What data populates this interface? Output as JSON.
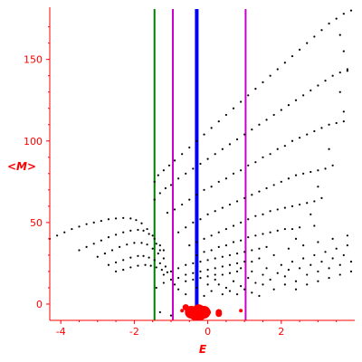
{
  "chart_data": {
    "type": "scatter",
    "xlabel": "E",
    "ylabel": "<M>",
    "xlim": [
      -4.3,
      4.0
    ],
    "ylim": [
      -10,
      182
    ],
    "x_ticks": [
      {
        "value": -4,
        "label": "-4"
      },
      {
        "value": -2,
        "label": "-2"
      },
      {
        "value": 0,
        "label": "0"
      },
      {
        "value": 2,
        "label": "2"
      }
    ],
    "y_ticks": [
      {
        "value": 0,
        "label": "0"
      },
      {
        "value": 50,
        "label": "50"
      },
      {
        "value": 100,
        "label": "100"
      },
      {
        "value": 150,
        "label": "150"
      }
    ],
    "grid": false,
    "colors": {
      "axis": "#ff0000",
      "points": "#000000",
      "highlight": "#ff0000"
    },
    "vertical_lines": [
      {
        "x": -1.45,
        "color": "#008000",
        "width": 2
      },
      {
        "x": -0.95,
        "color": "#cc00cc",
        "width": 2
      },
      {
        "x": -0.3,
        "color": "#0000ff",
        "width": 4
      },
      {
        "x": 1.03,
        "color": "#cc00cc",
        "width": 2
      }
    ],
    "series": [
      {
        "points": [
          [
            -4.3,
            40
          ],
          [
            -4.1,
            42
          ],
          [
            -3.9,
            44
          ],
          [
            -3.7,
            46
          ],
          [
            -3.5,
            47.5
          ],
          [
            -3.3,
            49
          ],
          [
            -3.1,
            50
          ],
          [
            -2.9,
            51
          ],
          [
            -2.7,
            52
          ],
          [
            -2.5,
            52.5
          ],
          [
            -2.3,
            52.8
          ],
          [
            -2.1,
            52.5
          ],
          [
            -1.95,
            51.5
          ],
          [
            -1.8,
            49.5
          ],
          [
            -1.65,
            46
          ],
          [
            -1.5,
            42
          ],
          [
            -1.4,
            37
          ],
          [
            -1.3,
            33
          ],
          [
            -3.5,
            33
          ],
          [
            -3.3,
            35
          ],
          [
            -3.1,
            37
          ],
          [
            -2.9,
            39
          ],
          [
            -2.7,
            41
          ],
          [
            -2.5,
            42.5
          ],
          [
            -2.3,
            44
          ],
          [
            -2.1,
            45
          ],
          [
            -1.9,
            45.5
          ],
          [
            -1.75,
            45
          ],
          [
            -1.6,
            43
          ],
          [
            -1.45,
            40
          ],
          [
            -1.3,
            36
          ],
          [
            -1.2,
            33
          ],
          [
            -3.0,
            29
          ],
          [
            -2.8,
            31
          ],
          [
            -2.6,
            33
          ],
          [
            -2.4,
            35
          ],
          [
            -2.2,
            36.5
          ],
          [
            -2.0,
            37.5
          ],
          [
            -1.8,
            37.5
          ],
          [
            -1.65,
            36.5
          ],
          [
            -1.5,
            34
          ],
          [
            -1.35,
            31
          ],
          [
            -1.2,
            28
          ],
          [
            -2.7,
            24
          ],
          [
            -2.5,
            25.5
          ],
          [
            -2.3,
            27
          ],
          [
            -2.1,
            28.5
          ],
          [
            -1.9,
            29.5
          ],
          [
            -1.75,
            29.5
          ],
          [
            -1.6,
            28.5
          ],
          [
            -1.45,
            27
          ],
          [
            -1.3,
            25
          ],
          [
            -1.15,
            23
          ],
          [
            -2.5,
            20
          ],
          [
            -2.3,
            21
          ],
          [
            -2.1,
            22.5
          ],
          [
            -1.9,
            23.5
          ],
          [
            -1.7,
            24
          ],
          [
            -1.55,
            23.5
          ],
          [
            -1.4,
            22.5
          ],
          [
            -1.25,
            21
          ],
          [
            -1.1,
            19.5
          ],
          [
            -1.45,
            75
          ],
          [
            -1.35,
            79
          ],
          [
            -1.2,
            82
          ],
          [
            -1.05,
            85
          ],
          [
            -0.9,
            88
          ],
          [
            -0.7,
            92
          ],
          [
            -0.5,
            96
          ],
          [
            -0.3,
            100
          ],
          [
            -0.1,
            104
          ],
          [
            0.1,
            108
          ],
          [
            0.3,
            112
          ],
          [
            0.5,
            116
          ],
          [
            0.7,
            120
          ],
          [
            0.9,
            124
          ],
          [
            1.1,
            128
          ],
          [
            1.3,
            132
          ],
          [
            1.5,
            136
          ],
          [
            1.7,
            140
          ],
          [
            1.9,
            144
          ],
          [
            2.1,
            148
          ],
          [
            2.3,
            152
          ],
          [
            2.5,
            156
          ],
          [
            2.7,
            160
          ],
          [
            2.9,
            164
          ],
          [
            3.1,
            168
          ],
          [
            3.3,
            172
          ],
          [
            3.5,
            175
          ],
          [
            3.7,
            178
          ],
          [
            3.9,
            180
          ],
          [
            3.6,
            165
          ],
          [
            3.7,
            155
          ],
          [
            3.8,
            143
          ],
          [
            -1.45,
            64
          ],
          [
            -1.3,
            68
          ],
          [
            -1.15,
            71
          ],
          [
            -1.0,
            73
          ],
          [
            -0.8,
            77
          ],
          [
            -0.6,
            80
          ],
          [
            -0.4,
            83
          ],
          [
            -0.2,
            86
          ],
          [
            0.0,
            89
          ],
          [
            0.2,
            92
          ],
          [
            0.4,
            95
          ],
          [
            0.6,
            98
          ],
          [
            0.8,
            101
          ],
          [
            1.0,
            104
          ],
          [
            1.2,
            107
          ],
          [
            1.4,
            110
          ],
          [
            1.6,
            113
          ],
          [
            1.8,
            116
          ],
          [
            2.0,
            119
          ],
          [
            2.2,
            122
          ],
          [
            2.4,
            125
          ],
          [
            2.6,
            128
          ],
          [
            2.8,
            131
          ],
          [
            3.0,
            134
          ],
          [
            3.2,
            137
          ],
          [
            3.4,
            140
          ],
          [
            3.6,
            142
          ],
          [
            3.8,
            144
          ],
          [
            3.6,
            130
          ],
          [
            3.7,
            118
          ],
          [
            -1.1,
            56
          ],
          [
            -0.9,
            58
          ],
          [
            -0.7,
            61
          ],
          [
            -0.5,
            64
          ],
          [
            -0.3,
            67
          ],
          [
            -0.1,
            70
          ],
          [
            0.1,
            72
          ],
          [
            0.3,
            75
          ],
          [
            0.5,
            77
          ],
          [
            0.7,
            80
          ],
          [
            0.9,
            82
          ],
          [
            1.1,
            85
          ],
          [
            1.3,
            87
          ],
          [
            1.5,
            90
          ],
          [
            1.7,
            92
          ],
          [
            1.9,
            95
          ],
          [
            2.1,
            97
          ],
          [
            2.3,
            100
          ],
          [
            2.5,
            102
          ],
          [
            2.7,
            104
          ],
          [
            2.9,
            106
          ],
          [
            3.1,
            108
          ],
          [
            3.3,
            110
          ],
          [
            3.5,
            111
          ],
          [
            3.7,
            112
          ],
          [
            3.3,
            95
          ],
          [
            3.4,
            85
          ],
          [
            -0.8,
            44
          ],
          [
            -0.6,
            47
          ],
          [
            -0.4,
            50
          ],
          [
            -0.2,
            52
          ],
          [
            0.0,
            55
          ],
          [
            0.2,
            57
          ],
          [
            0.4,
            59
          ],
          [
            0.6,
            61
          ],
          [
            0.8,
            63
          ],
          [
            1.0,
            65
          ],
          [
            1.2,
            67
          ],
          [
            1.4,
            69
          ],
          [
            1.6,
            71
          ],
          [
            1.8,
            73
          ],
          [
            2.0,
            75
          ],
          [
            2.2,
            77
          ],
          [
            2.4,
            79
          ],
          [
            2.6,
            80
          ],
          [
            2.8,
            81
          ],
          [
            3.0,
            82
          ],
          [
            3.2,
            83
          ],
          [
            3.0,
            72
          ],
          [
            3.1,
            65
          ],
          [
            -0.5,
            36
          ],
          [
            -0.3,
            38
          ],
          [
            -0.1,
            40
          ],
          [
            0.1,
            42
          ],
          [
            0.3,
            44
          ],
          [
            0.5,
            46
          ],
          [
            0.7,
            48
          ],
          [
            0.9,
            50
          ],
          [
            1.1,
            52
          ],
          [
            1.3,
            54
          ],
          [
            1.5,
            55
          ],
          [
            1.7,
            57
          ],
          [
            1.9,
            58
          ],
          [
            2.1,
            59
          ],
          [
            2.3,
            60
          ],
          [
            2.5,
            61
          ],
          [
            2.7,
            62
          ],
          [
            2.9,
            63
          ],
          [
            2.8,
            55
          ],
          [
            2.9,
            48
          ],
          [
            -0.3,
            30
          ],
          [
            -0.1,
            32
          ],
          [
            0.1,
            33
          ],
          [
            0.3,
            35
          ],
          [
            0.5,
            36
          ],
          [
            0.7,
            38
          ],
          [
            0.9,
            39
          ],
          [
            1.1,
            41
          ],
          [
            1.3,
            42
          ],
          [
            1.5,
            43
          ],
          [
            1.7,
            44
          ],
          [
            1.9,
            45
          ],
          [
            2.1,
            46
          ],
          [
            2.3,
            46
          ],
          [
            2.5,
            47
          ],
          [
            2.4,
            40
          ],
          [
            -1.2,
            18
          ],
          [
            -1.0,
            20
          ],
          [
            -0.8,
            22
          ],
          [
            -0.6,
            24
          ],
          [
            -0.4,
            25
          ],
          [
            -0.2,
            26
          ],
          [
            0.0,
            27
          ],
          [
            0.2,
            28
          ],
          [
            0.4,
            29
          ],
          [
            0.6,
            30
          ],
          [
            0.8,
            31
          ],
          [
            1.0,
            32
          ],
          [
            1.2,
            33
          ],
          [
            1.4,
            34
          ],
          [
            1.6,
            35
          ],
          [
            -1.0,
            15
          ],
          [
            -0.8,
            16
          ],
          [
            -0.6,
            18
          ],
          [
            -0.4,
            19
          ],
          [
            -0.2,
            20
          ],
          [
            0.0,
            21
          ],
          [
            0.2,
            22
          ],
          [
            0.4,
            23
          ],
          [
            0.6,
            24
          ],
          [
            0.8,
            25
          ],
          [
            1.0,
            26
          ],
          [
            1.2,
            26
          ],
          [
            -0.6,
            14
          ],
          [
            -0.4,
            15
          ],
          [
            -0.2,
            16
          ],
          [
            0.0,
            17
          ],
          [
            0.2,
            18
          ],
          [
            0.4,
            18
          ],
          [
            0.6,
            19
          ],
          [
            0.8,
            20
          ],
          [
            0.3,
            12
          ],
          [
            0.5,
            10
          ],
          [
            0.7,
            14
          ],
          [
            0.9,
            11
          ],
          [
            1.1,
            16
          ],
          [
            1.3,
            13
          ],
          [
            1.5,
            18
          ],
          [
            1.6,
            22
          ],
          [
            1.7,
            15
          ],
          [
            1.9,
            19
          ],
          [
            2.0,
            24
          ],
          [
            2.1,
            17
          ],
          [
            2.2,
            21
          ],
          [
            2.3,
            26
          ],
          [
            2.4,
            14
          ],
          [
            2.5,
            22
          ],
          [
            2.6,
            28
          ],
          [
            2.7,
            18
          ],
          [
            2.8,
            24
          ],
          [
            2.9,
            30
          ],
          [
            3.0,
            20
          ],
          [
            3.1,
            26
          ],
          [
            3.2,
            32
          ],
          [
            3.3,
            22
          ],
          [
            3.4,
            28
          ],
          [
            3.5,
            34
          ],
          [
            3.6,
            24
          ],
          [
            3.7,
            30
          ],
          [
            3.8,
            36
          ],
          [
            3.9,
            26
          ],
          [
            1.4,
            28
          ],
          [
            1.8,
            30
          ],
          [
            2.2,
            34
          ],
          [
            2.6,
            36
          ],
          [
            3.0,
            38
          ],
          [
            3.4,
            40
          ],
          [
            3.8,
            42
          ],
          [
            0.9,
            22
          ],
          [
            1.2,
            20
          ],
          [
            1.5,
            12
          ],
          [
            1.8,
            9
          ],
          [
            2.1,
            12
          ],
          [
            2.4,
            9
          ],
          [
            2.7,
            12
          ],
          [
            3.0,
            14
          ],
          [
            3.3,
            16
          ],
          [
            3.6,
            18
          ],
          [
            3.9,
            20
          ],
          [
            0.0,
            12
          ],
          [
            0.1,
            8
          ],
          [
            0.2,
            15
          ],
          [
            -0.3,
            10
          ],
          [
            -0.1,
            5
          ],
          [
            0.4,
            6
          ],
          [
            0.6,
            8
          ],
          [
            0.8,
            6
          ],
          [
            1.0,
            9
          ],
          [
            1.2,
            7
          ],
          [
            1.4,
            5
          ],
          [
            -0.8,
            9
          ],
          [
            -0.6,
            6
          ],
          [
            -0.9,
            12
          ],
          [
            -1.2,
            13
          ],
          [
            -1.4,
            10
          ],
          [
            -1.3,
            -5
          ],
          [
            -1.0,
            -7
          ]
        ]
      },
      {
        "points": [
          [
            -0.35,
            -6
          ],
          [
            -0.2,
            -6
          ],
          [
            -0.45,
            -5
          ],
          [
            -0.25,
            -4
          ],
          [
            -0.1,
            -5
          ],
          [
            0.0,
            -5
          ],
          [
            -0.6,
            -2
          ],
          [
            0.3,
            -5
          ],
          [
            0.3,
            -6
          ],
          [
            0.9,
            -4
          ],
          [
            -0.7,
            -4
          ]
        ]
      }
    ]
  }
}
